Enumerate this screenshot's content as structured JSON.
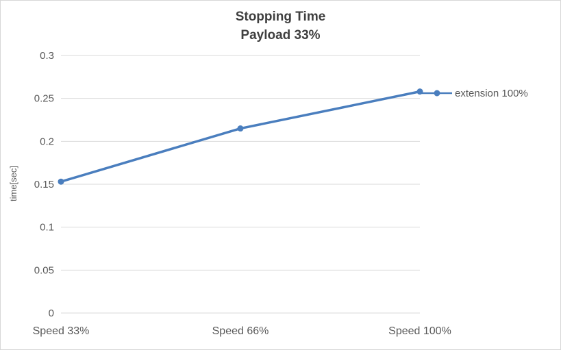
{
  "title": "Stopping Time",
  "subtitle": "Payload 33%",
  "legend": {
    "label": "extension 100%"
  },
  "colors": {
    "line": "#4a7ebe",
    "grid": "#d9d9d9",
    "text": "#595959",
    "title_text": "#3f3f3f"
  },
  "chart_data": {
    "type": "line",
    "title": "Stopping Time",
    "subtitle": "Payload 33%",
    "categories": [
      "Speed 33%",
      "Speed 66%",
      "Speed 100%"
    ],
    "series": [
      {
        "name": "extension 100%",
        "values": [
          0.153,
          0.215,
          0.258
        ],
        "color": "#4a7ebe"
      }
    ],
    "xlabel": "",
    "ylabel": "time[sec]",
    "ylim": [
      0,
      0.3
    ],
    "yticks": [
      0,
      0.05,
      0.1,
      0.15,
      0.2,
      0.25,
      0.3
    ],
    "grid": true,
    "legend_position": "right",
    "marker": "circle"
  }
}
